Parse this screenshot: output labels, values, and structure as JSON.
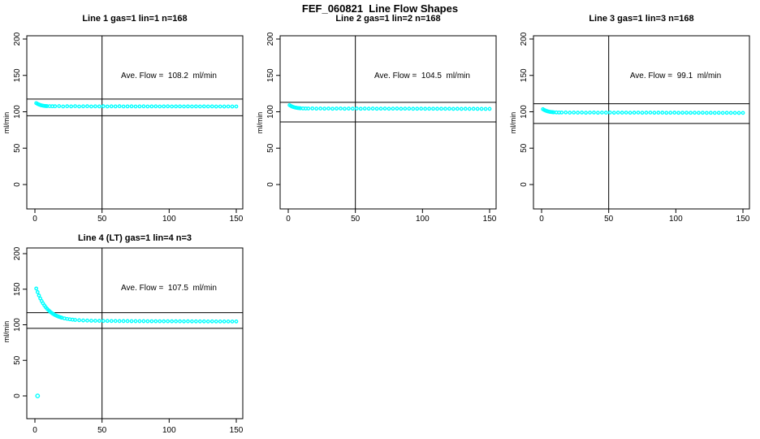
{
  "figure_title": "FEF_060821  Line Flow Shapes",
  "accent_color": "#00FFFF",
  "axis_color": "#000000",
  "chart_data": [
    {
      "type": "scatter",
      "title": "Line 1 gas=1 lin=1 n=168",
      "ave_flow_text": "Ave. Flow =  108.2  ml/min",
      "ave_flow": 108.2,
      "n": 168,
      "xlabel": "",
      "ylabel": "ml/min",
      "x_ticks": [
        0,
        50,
        100,
        150
      ],
      "y_ticks": [
        0,
        50,
        100,
        150,
        200
      ],
      "xlim": [
        -6,
        155
      ],
      "ylim": [
        -33,
        204
      ],
      "grid": false,
      "marker": "open-circle",
      "vline_x": 50,
      "ref_lines": [
        117.5,
        94.5
      ],
      "points": [
        [
          1,
          111.9
        ],
        [
          2,
          110.8
        ],
        [
          3,
          110.0
        ],
        [
          4,
          109.3
        ],
        [
          5,
          108.8
        ],
        [
          6,
          108.4
        ],
        [
          7,
          108.1
        ],
        [
          8,
          107.9
        ],
        [
          9,
          107.8
        ],
        [
          11,
          107.7
        ],
        [
          13,
          107.6
        ],
        [
          15,
          107.6
        ],
        [
          18,
          107.8
        ],
        [
          21,
          107.3
        ],
        [
          24,
          107.6
        ],
        [
          27,
          107.4
        ],
        [
          30,
          107.7
        ],
        [
          33,
          107.3
        ],
        [
          36,
          107.5
        ],
        [
          39,
          107.6
        ],
        [
          42,
          107.3
        ],
        [
          45,
          107.5
        ],
        [
          48,
          107.4
        ],
        [
          51,
          107.6
        ],
        [
          54,
          107.3
        ],
        [
          57,
          107.5
        ],
        [
          60,
          107.4
        ],
        [
          63,
          107.6
        ],
        [
          66,
          107.3
        ],
        [
          69,
          107.4
        ],
        [
          72,
          107.5
        ],
        [
          75,
          107.3
        ],
        [
          78,
          107.4
        ],
        [
          81,
          107.5
        ],
        [
          84,
          107.3
        ],
        [
          87,
          107.4
        ],
        [
          90,
          107.5
        ],
        [
          93,
          107.3
        ],
        [
          96,
          107.4
        ],
        [
          99,
          107.5
        ],
        [
          102,
          107.3
        ],
        [
          105,
          107.4
        ],
        [
          108,
          107.4
        ],
        [
          111,
          107.3
        ],
        [
          114,
          107.4
        ],
        [
          117,
          107.3
        ],
        [
          120,
          107.4
        ],
        [
          123,
          107.3
        ],
        [
          126,
          107.4
        ],
        [
          129,
          107.3
        ],
        [
          132,
          107.4
        ],
        [
          135,
          107.2
        ],
        [
          138,
          107.3
        ],
        [
          141,
          107.2
        ],
        [
          144,
          107.3
        ],
        [
          147,
          107.2
        ],
        [
          150,
          107.3
        ]
      ],
      "outlier_points": []
    },
    {
      "type": "scatter",
      "title": "Line 2 gas=1 lin=2 n=168",
      "ave_flow_text": "Ave. Flow =  104.5  ml/min",
      "ave_flow": 104.5,
      "n": 168,
      "xlabel": "",
      "ylabel": "ml/min",
      "x_ticks": [
        0,
        50,
        100,
        150
      ],
      "y_ticks": [
        0,
        50,
        100,
        150,
        200
      ],
      "xlim": [
        -6,
        155
      ],
      "ylim": [
        -33,
        204
      ],
      "grid": false,
      "marker": "open-circle",
      "vline_x": 50,
      "ref_lines": [
        113.0,
        86.0
      ],
      "points": [
        [
          1,
          109.1
        ],
        [
          2,
          108.0
        ],
        [
          3,
          107.1
        ],
        [
          4,
          106.4
        ],
        [
          5,
          105.9
        ],
        [
          6,
          105.5
        ],
        [
          7,
          105.2
        ],
        [
          8,
          105.0
        ],
        [
          9,
          104.8
        ],
        [
          11,
          104.6
        ],
        [
          13,
          104.5
        ],
        [
          15,
          104.5
        ],
        [
          18,
          104.6
        ],
        [
          21,
          104.3
        ],
        [
          24,
          104.5
        ],
        [
          27,
          104.3
        ],
        [
          30,
          104.5
        ],
        [
          33,
          104.2
        ],
        [
          36,
          104.4
        ],
        [
          39,
          104.5
        ],
        [
          42,
          104.2
        ],
        [
          45,
          104.4
        ],
        [
          48,
          104.3
        ],
        [
          51,
          104.5
        ],
        [
          54,
          104.2
        ],
        [
          57,
          104.4
        ],
        [
          60,
          104.3
        ],
        [
          63,
          104.4
        ],
        [
          66,
          104.2
        ],
        [
          69,
          104.3
        ],
        [
          72,
          104.4
        ],
        [
          75,
          104.2
        ],
        [
          78,
          104.3
        ],
        [
          81,
          104.4
        ],
        [
          84,
          104.2
        ],
        [
          87,
          104.3
        ],
        [
          90,
          104.3
        ],
        [
          93,
          104.1
        ],
        [
          96,
          104.2
        ],
        [
          99,
          104.3
        ],
        [
          102,
          104.1
        ],
        [
          105,
          104.2
        ],
        [
          108,
          104.2
        ],
        [
          111,
          104.1
        ],
        [
          114,
          104.2
        ],
        [
          117,
          104.1
        ],
        [
          120,
          104.2
        ],
        [
          123,
          104.0
        ],
        [
          126,
          104.1
        ],
        [
          129,
          104.0
        ],
        [
          132,
          104.1
        ],
        [
          135,
          104.0
        ],
        [
          138,
          104.1
        ],
        [
          141,
          104.0
        ],
        [
          144,
          104.0
        ],
        [
          147,
          103.9
        ],
        [
          150,
          104.0
        ]
      ],
      "outlier_points": []
    },
    {
      "type": "scatter",
      "title": "Line 3 gas=1 lin=3 n=168",
      "ave_flow_text": "Ave. Flow =  99.1  ml/min",
      "ave_flow": 99.1,
      "n": 168,
      "xlabel": "",
      "ylabel": "ml/min",
      "x_ticks": [
        0,
        50,
        100,
        150
      ],
      "y_ticks": [
        0,
        50,
        100,
        150,
        200
      ],
      "xlim": [
        -6,
        155
      ],
      "ylim": [
        -33,
        204
      ],
      "grid": false,
      "marker": "open-circle",
      "vline_x": 50,
      "ref_lines": [
        111.0,
        84.0
      ],
      "points": [
        [
          1,
          103.6
        ],
        [
          2,
          102.5
        ],
        [
          3,
          101.6
        ],
        [
          4,
          100.9
        ],
        [
          5,
          100.4
        ],
        [
          6,
          100.0
        ],
        [
          7,
          99.7
        ],
        [
          8,
          99.5
        ],
        [
          9,
          99.3
        ],
        [
          11,
          99.1
        ],
        [
          13,
          99.0
        ],
        [
          15,
          99.0
        ],
        [
          18,
          99.1
        ],
        [
          21,
          98.8
        ],
        [
          24,
          99.0
        ],
        [
          27,
          98.8
        ],
        [
          30,
          99.0
        ],
        [
          33,
          98.7
        ],
        [
          36,
          98.9
        ],
        [
          39,
          99.0
        ],
        [
          42,
          98.7
        ],
        [
          45,
          98.9
        ],
        [
          48,
          98.8
        ],
        [
          51,
          99.0
        ],
        [
          54,
          98.7
        ],
        [
          57,
          98.9
        ],
        [
          60,
          98.8
        ],
        [
          63,
          98.9
        ],
        [
          66,
          98.7
        ],
        [
          69,
          98.8
        ],
        [
          72,
          98.9
        ],
        [
          75,
          98.7
        ],
        [
          78,
          98.8
        ],
        [
          81,
          98.9
        ],
        [
          84,
          98.7
        ],
        [
          87,
          98.8
        ],
        [
          90,
          98.8
        ],
        [
          93,
          98.6
        ],
        [
          96,
          98.7
        ],
        [
          99,
          98.8
        ],
        [
          102,
          98.6
        ],
        [
          105,
          98.7
        ],
        [
          108,
          98.7
        ],
        [
          111,
          98.6
        ],
        [
          114,
          98.7
        ],
        [
          117,
          98.6
        ],
        [
          120,
          98.7
        ],
        [
          123,
          98.5
        ],
        [
          126,
          98.6
        ],
        [
          129,
          98.5
        ],
        [
          132,
          98.6
        ],
        [
          135,
          98.5
        ],
        [
          138,
          98.6
        ],
        [
          141,
          98.5
        ],
        [
          144,
          98.5
        ],
        [
          147,
          98.4
        ],
        [
          150,
          98.5
        ]
      ],
      "outlier_points": []
    },
    {
      "type": "scatter",
      "title": "Line 4 (LT) gas=1 lin=4 n=3",
      "ave_flow_text": "Ave. Flow =  107.5  ml/min",
      "ave_flow": 107.5,
      "n": 3,
      "xlabel": "",
      "ylabel": "ml/min",
      "x_ticks": [
        0,
        50,
        100,
        150
      ],
      "y_ticks": [
        0,
        50,
        100,
        150,
        200
      ],
      "xlim": [
        -6,
        155
      ],
      "ylim": [
        -32,
        208
      ],
      "grid": false,
      "marker": "open-circle",
      "vline_x": 50,
      "ref_lines": [
        117.0,
        95.0
      ],
      "points": [
        [
          1,
          151.0
        ],
        [
          2,
          145.9
        ],
        [
          3,
          141.2
        ],
        [
          4,
          137.0
        ],
        [
          5,
          133.4
        ],
        [
          6,
          130.2
        ],
        [
          7,
          127.3
        ],
        [
          8,
          124.8
        ],
        [
          9,
          122.6
        ],
        [
          10,
          120.6
        ],
        [
          11,
          119.0
        ],
        [
          12,
          117.3
        ],
        [
          13,
          116.0
        ],
        [
          14,
          114.8
        ],
        [
          15,
          113.7
        ],
        [
          16,
          112.8
        ],
        [
          17,
          111.9
        ],
        [
          18,
          111.2
        ],
        [
          19,
          110.6
        ],
        [
          20,
          110.0
        ],
        [
          22,
          109.0
        ],
        [
          24,
          108.3
        ],
        [
          26,
          107.7
        ],
        [
          28,
          107.2
        ],
        [
          30,
          106.8
        ],
        [
          33,
          106.4
        ],
        [
          36,
          106.1
        ],
        [
          39,
          105.9
        ],
        [
          42,
          105.7
        ],
        [
          45,
          105.6
        ],
        [
          48,
          105.5
        ],
        [
          51,
          105.4
        ],
        [
          54,
          105.4
        ],
        [
          57,
          105.3
        ],
        [
          60,
          105.3
        ],
        [
          63,
          105.2
        ],
        [
          66,
          105.2
        ],
        [
          69,
          105.2
        ],
        [
          72,
          105.1
        ],
        [
          75,
          105.1
        ],
        [
          78,
          105.1
        ],
        [
          81,
          105.1
        ],
        [
          84,
          105.0
        ],
        [
          87,
          105.0
        ],
        [
          90,
          105.0
        ],
        [
          93,
          105.0
        ],
        [
          96,
          104.9
        ],
        [
          99,
          105.0
        ],
        [
          102,
          104.9
        ],
        [
          105,
          104.9
        ],
        [
          108,
          104.9
        ],
        [
          111,
          104.8
        ],
        [
          114,
          104.9
        ],
        [
          117,
          104.8
        ],
        [
          120,
          104.8
        ],
        [
          123,
          104.8
        ],
        [
          126,
          104.8
        ],
        [
          129,
          104.7
        ],
        [
          132,
          104.8
        ],
        [
          135,
          104.7
        ],
        [
          138,
          104.7
        ],
        [
          141,
          104.7
        ],
        [
          144,
          104.7
        ],
        [
          147,
          104.6
        ],
        [
          150,
          104.7
        ]
      ],
      "outlier_points": [
        [
          2,
          0
        ]
      ]
    }
  ]
}
